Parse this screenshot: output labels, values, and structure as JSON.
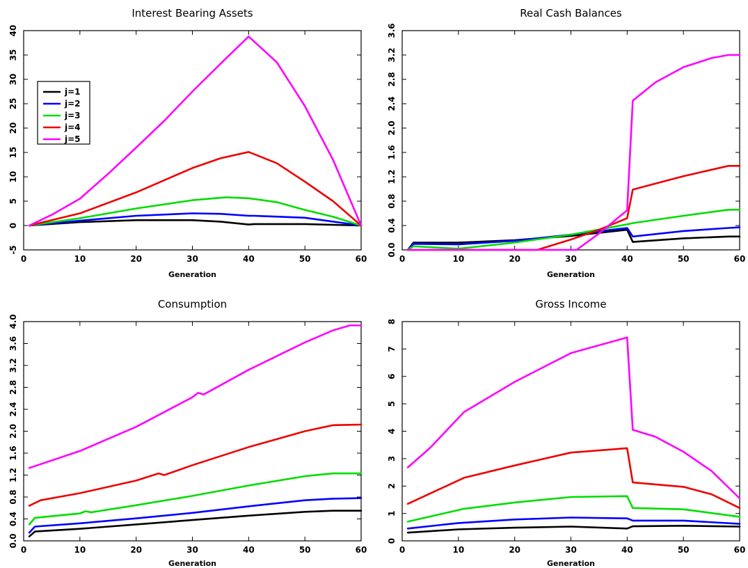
{
  "chart_data": [
    {
      "type": "line",
      "title": "Interest Bearing Assets",
      "xlabel": "Generation",
      "ylabel": "",
      "xlim": [
        0,
        60
      ],
      "ylim": [
        -5,
        40
      ],
      "xticks": [
        0,
        10,
        20,
        30,
        40,
        50,
        60
      ],
      "yticks": [
        -5,
        0,
        5,
        10,
        15,
        20,
        25,
        30,
        35,
        40
      ],
      "legend": "top-left",
      "grid": false,
      "series": [
        {
          "name": "j=1",
          "color": "#000000",
          "x": [
            1,
            10,
            20,
            30,
            35,
            40,
            41,
            50,
            60
          ],
          "y": [
            0,
            0.7,
            1.1,
            1.1,
            0.8,
            0.2,
            0.3,
            0.3,
            0
          ]
        },
        {
          "name": "j=2",
          "color": "#0000ff",
          "x": [
            1,
            10,
            20,
            30,
            35,
            40,
            41,
            50,
            60
          ],
          "y": [
            0,
            1.0,
            2.0,
            2.5,
            2.4,
            2.0,
            2.0,
            1.6,
            0
          ]
        },
        {
          "name": "j=3",
          "color": "#00dd00",
          "x": [
            1,
            10,
            20,
            30,
            36,
            40,
            45,
            50,
            55,
            60
          ],
          "y": [
            0,
            1.5,
            3.5,
            5.2,
            5.8,
            5.6,
            4.8,
            3.2,
            1.8,
            0
          ]
        },
        {
          "name": "j=4",
          "color": "#ee0000",
          "x": [
            1,
            10,
            20,
            30,
            35,
            40,
            45,
            50,
            55,
            60
          ],
          "y": [
            0,
            2.5,
            6.8,
            11.8,
            13.8,
            15.1,
            12.8,
            9.0,
            5.0,
            0
          ]
        },
        {
          "name": "j=5",
          "color": "#ff00ff",
          "x": [
            1,
            5,
            10,
            15,
            20,
            25,
            30,
            35,
            40,
            45,
            50,
            55,
            60
          ],
          "y": [
            0,
            2.2,
            5.5,
            10.6,
            16.0,
            21.5,
            27.5,
            33.2,
            38.8,
            33.5,
            24.5,
            13.5,
            0
          ]
        }
      ]
    },
    {
      "type": "line",
      "title": "Real Cash Balances",
      "xlabel": "Generation",
      "ylabel": "",
      "xlim": [
        0,
        60
      ],
      "ylim": [
        0,
        3.6
      ],
      "xticks": [
        0,
        10,
        20,
        30,
        40,
        50,
        60
      ],
      "yticks": [
        "0.0",
        "0.4",
        "0.8",
        "1.2",
        "1.6",
        "2.0",
        "2.4",
        "2.8",
        "3.2",
        "3.6"
      ],
      "grid": false,
      "series": [
        {
          "name": "j=1",
          "color": "#000000",
          "x": [
            1,
            2,
            10,
            20,
            30,
            40,
            41,
            50,
            58,
            60
          ],
          "y": [
            0,
            0.12,
            0.12,
            0.16,
            0.23,
            0.33,
            0.13,
            0.19,
            0.22,
            0.22
          ]
        },
        {
          "name": "j=2",
          "color": "#0000ff",
          "x": [
            1,
            2,
            10,
            20,
            30,
            40,
            41,
            50,
            58,
            60
          ],
          "y": [
            0,
            0.1,
            0.09,
            0.15,
            0.25,
            0.36,
            0.22,
            0.31,
            0.36,
            0.37
          ]
        },
        {
          "name": "j=3",
          "color": "#00dd00",
          "x": [
            1,
            2,
            10,
            20,
            30,
            40,
            41,
            50,
            58,
            60
          ],
          "y": [
            0,
            0.06,
            0.02,
            0.12,
            0.25,
            0.42,
            0.44,
            0.56,
            0.66,
            0.66
          ]
        },
        {
          "name": "j=4",
          "color": "#ee0000",
          "x": [
            1,
            24,
            30,
            35,
            40,
            41,
            50,
            58,
            60
          ],
          "y": [
            0,
            0,
            0.17,
            0.33,
            0.52,
            0.99,
            1.21,
            1.38,
            1.38
          ]
        },
        {
          "name": "j=5",
          "color": "#ff00ff",
          "x": [
            1,
            31,
            35,
            40,
            41,
            45,
            50,
            55,
            58,
            60
          ],
          "y": [
            0,
            0,
            0.27,
            0.65,
            2.45,
            2.75,
            3.0,
            3.15,
            3.2,
            3.2
          ]
        }
      ]
    },
    {
      "type": "line",
      "title": "Consumption",
      "xlabel": "Generation",
      "ylabel": "",
      "xlim": [
        0,
        60
      ],
      "ylim": [
        0,
        4.0
      ],
      "xticks": [
        0,
        10,
        20,
        30,
        40,
        50,
        60
      ],
      "yticks": [
        "0.0",
        "0.4",
        "0.8",
        "1.2",
        "1.6",
        "2.0",
        "2.4",
        "2.8",
        "3.2",
        "3.6",
        "4.0"
      ],
      "grid": false,
      "series": [
        {
          "name": "j=1",
          "color": "#000000",
          "x": [
            1,
            2,
            10,
            20,
            30,
            40,
            50,
            55,
            60
          ],
          "y": [
            0.08,
            0.17,
            0.22,
            0.3,
            0.38,
            0.46,
            0.53,
            0.55,
            0.55
          ]
        },
        {
          "name": "j=2",
          "color": "#0000ff",
          "x": [
            1,
            2,
            10,
            20,
            30,
            40,
            50,
            55,
            60
          ],
          "y": [
            0.15,
            0.26,
            0.32,
            0.41,
            0.51,
            0.63,
            0.74,
            0.77,
            0.78
          ]
        },
        {
          "name": "j=3",
          "color": "#00dd00",
          "x": [
            1,
            2,
            10,
            11,
            12,
            20,
            30,
            40,
            50,
            55,
            60
          ],
          "y": [
            0.3,
            0.42,
            0.5,
            0.54,
            0.52,
            0.65,
            0.82,
            1.01,
            1.18,
            1.23,
            1.23
          ]
        },
        {
          "name": "j=4",
          "color": "#ee0000",
          "x": [
            1,
            3,
            10,
            20,
            24,
            25,
            30,
            40,
            50,
            55,
            60
          ],
          "y": [
            0.64,
            0.74,
            0.87,
            1.1,
            1.23,
            1.2,
            1.38,
            1.71,
            2.0,
            2.11,
            2.12
          ]
        },
        {
          "name": "j=5",
          "color": "#ff00ff",
          "x": [
            1,
            10,
            20,
            30,
            31,
            32,
            40,
            50,
            55,
            58,
            60
          ],
          "y": [
            1.33,
            1.64,
            2.08,
            2.62,
            2.7,
            2.67,
            3.12,
            3.62,
            3.84,
            3.93,
            3.93
          ]
        }
      ]
    },
    {
      "type": "line",
      "title": "Gross Income",
      "xlabel": "Generation",
      "ylabel": "",
      "xlim": [
        0,
        60
      ],
      "ylim": [
        0,
        8
      ],
      "xticks": [
        0,
        10,
        20,
        30,
        40,
        50,
        60
      ],
      "yticks": [
        0,
        1,
        2,
        3,
        4,
        5,
        6,
        7,
        8
      ],
      "grid": false,
      "series": [
        {
          "name": "j=1",
          "color": "#000000",
          "x": [
            1,
            10,
            20,
            30,
            40,
            41,
            50,
            60
          ],
          "y": [
            0.3,
            0.42,
            0.48,
            0.52,
            0.45,
            0.53,
            0.55,
            0.52
          ]
        },
        {
          "name": "j=2",
          "color": "#0000ff",
          "x": [
            1,
            10,
            20,
            30,
            40,
            41,
            50,
            60
          ],
          "y": [
            0.45,
            0.65,
            0.78,
            0.85,
            0.82,
            0.74,
            0.74,
            0.62
          ]
        },
        {
          "name": "j=3",
          "color": "#00dd00",
          "x": [
            1,
            11,
            20,
            30,
            40,
            41,
            50,
            60
          ],
          "y": [
            0.7,
            1.17,
            1.4,
            1.6,
            1.63,
            1.2,
            1.15,
            0.88
          ]
        },
        {
          "name": "j=4",
          "color": "#ee0000",
          "x": [
            1,
            11,
            20,
            30,
            40,
            41,
            50,
            55,
            60
          ],
          "y": [
            1.35,
            2.3,
            2.75,
            3.22,
            3.38,
            2.13,
            1.97,
            1.7,
            1.2
          ]
        },
        {
          "name": "j=5",
          "color": "#ff00ff",
          "x": [
            1,
            5,
            11,
            20,
            30,
            40,
            41,
            45,
            50,
            55,
            60
          ],
          "y": [
            2.68,
            3.4,
            4.7,
            5.8,
            6.85,
            7.42,
            4.05,
            3.8,
            3.25,
            2.55,
            1.55
          ]
        }
      ]
    }
  ]
}
